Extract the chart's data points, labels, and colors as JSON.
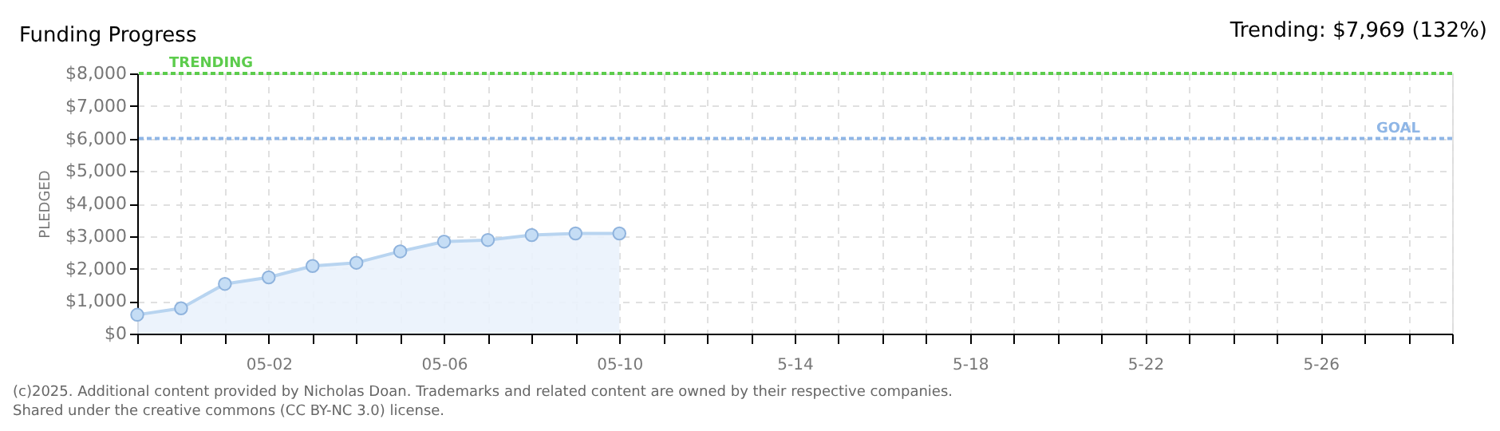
{
  "chart_data": {
    "type": "area",
    "title": "Funding Progress",
    "ylabel": "PLEDGED",
    "x": [
      "2025-04-29",
      "2025-04-30",
      "2025-05-01",
      "2025-05-02",
      "2025-05-03",
      "2025-05-04",
      "2025-05-05",
      "2025-05-06",
      "2025-05-07",
      "2025-05-08",
      "2025-05-09",
      "2025-05-10"
    ],
    "series": [
      {
        "color": "#b8d4f0",
        "values": [
          580,
          780,
          1530,
          1730,
          2080,
          2180,
          2530,
          2830,
          2880,
          3030,
          3080,
          3080
        ]
      }
    ],
    "marker": "circle",
    "grid": true,
    "xlim": [
      "2025-04-29",
      "2025-05-29"
    ],
    "xticks": [
      {
        "value": "2025-04-29",
        "label": null
      },
      {
        "value": "2025-04-30",
        "label": null
      },
      {
        "value": "2025-05-01",
        "label": null
      },
      {
        "value": "2025-05-02",
        "label": "05-02"
      },
      {
        "value": "2025-05-03",
        "label": null
      },
      {
        "value": "2025-05-04",
        "label": null
      },
      {
        "value": "2025-05-05",
        "label": null
      },
      {
        "value": "2025-05-06",
        "label": "05-06"
      },
      {
        "value": "2025-05-07",
        "label": null
      },
      {
        "value": "2025-05-08",
        "label": null
      },
      {
        "value": "2025-05-09",
        "label": null
      },
      {
        "value": "2025-05-10",
        "label": "05-10"
      },
      {
        "value": "2025-05-11",
        "label": null
      },
      {
        "value": "2025-05-12",
        "label": null
      },
      {
        "value": "2025-05-13",
        "label": null
      },
      {
        "value": "2025-05-14",
        "label": "5-14"
      },
      {
        "value": "2025-05-15",
        "label": null
      },
      {
        "value": "2025-05-16",
        "label": null
      },
      {
        "value": "2025-05-17",
        "label": null
      },
      {
        "value": "2025-05-18",
        "label": "5-18"
      },
      {
        "value": "2025-05-19",
        "label": null
      },
      {
        "value": "2025-05-20",
        "label": null
      },
      {
        "value": "2025-05-21",
        "label": null
      },
      {
        "value": "2025-05-22",
        "label": "5-22"
      },
      {
        "value": "2025-05-23",
        "label": null
      },
      {
        "value": "2025-05-24",
        "label": null
      },
      {
        "value": "2025-05-25",
        "label": null
      },
      {
        "value": "2025-05-26",
        "label": "5-26"
      },
      {
        "value": "2025-05-27",
        "label": null
      },
      {
        "value": "2025-05-28",
        "label": null
      },
      {
        "value": "2025-05-29",
        "label": null
      }
    ],
    "ylim": [
      0,
      8000
    ],
    "yticks": [
      {
        "value": 0,
        "label": "$0"
      },
      {
        "value": 1000,
        "label": "$1,000"
      },
      {
        "value": 2000,
        "label": "$2,000"
      },
      {
        "value": 3000,
        "label": "$3,000"
      },
      {
        "value": 4000,
        "label": "$4,000"
      },
      {
        "value": 5000,
        "label": "$5,000"
      },
      {
        "value": 6000,
        "label": "$6,000"
      },
      {
        "value": 7000,
        "label": "$7,000"
      },
      {
        "value": 8000,
        "label": "$8,000"
      }
    ],
    "ref_lines": [
      {
        "axis": "y",
        "value": 8000,
        "label": "TRENDING",
        "color": "#5ccc4c",
        "line_style": "dotted"
      },
      {
        "axis": "y",
        "value": 6000,
        "label": "GOAL",
        "color": "#8fb6e6",
        "line_style": "dotted"
      }
    ],
    "annotations": [
      "Trending: $7,969 (132%)",
      "(c)2025. Additional content provided by Nicholas Doan. Trademarks and related content are owned by their respective companies.",
      "Shared under the creative commons (CC BY-NC 3.0) license."
    ]
  }
}
